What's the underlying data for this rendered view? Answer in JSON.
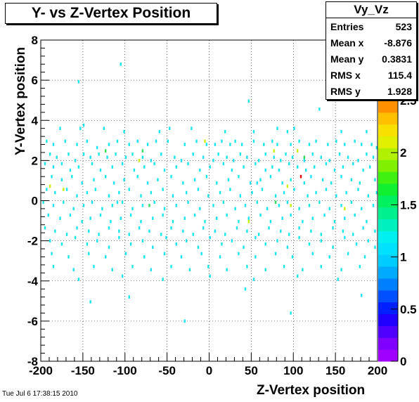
{
  "title": "Y- vs Z-Vertex Position",
  "timestamp": "Tue Jul  6 17:38:15 2010",
  "stats": {
    "name": "Vy_Vz",
    "rows": [
      {
        "label": "Entries",
        "value": "523"
      },
      {
        "label": "Mean x",
        "value": "-8.876"
      },
      {
        "label": "Mean y",
        "value": "0.3831"
      },
      {
        "label": "RMS x",
        "value": "115.4"
      },
      {
        "label": "RMS y",
        "value": "1.928"
      }
    ]
  },
  "chart_data": {
    "type": "heatmap",
    "title": "Y- vs Z-Vertex Position",
    "xlabel": "Z-Vertex position",
    "ylabel": "Y-Vertex position",
    "xlim": [
      -200,
      200
    ],
    "ylim": [
      -8,
      8
    ],
    "xticks": [
      "-200",
      "-150",
      "-100",
      "-50",
      "0",
      "50",
      "100",
      "150",
      "200"
    ],
    "yticks": [
      "-8",
      "-6",
      "-4",
      "-2",
      "0",
      "2",
      "4",
      "6",
      "8"
    ],
    "colorbar": {
      "min": 0,
      "max": 2.5,
      "ticks": [
        "0",
        "0.5",
        "1",
        "1.5",
        "2",
        "2.5"
      ]
    },
    "grid": true,
    "bin_size": [
      2,
      0.16
    ],
    "points": [
      [
        -106,
        6.72
      ],
      [
        -156,
        5.84
      ],
      [
        46,
        4.88
      ],
      [
        130,
        4.48
      ],
      [
        -150,
        3.68
      ],
      [
        -178,
        3.52
      ],
      [
        -154,
        3.52
      ],
      [
        -126,
        3.52
      ],
      [
        -102,
        3.36
      ],
      [
        -60,
        3.36
      ],
      [
        -48,
        3.52
      ],
      [
        -22,
        3.52
      ],
      [
        18,
        3.36
      ],
      [
        52,
        3.36
      ],
      [
        80,
        3.52
      ],
      [
        92,
        3.36
      ],
      [
        100,
        3.52
      ],
      [
        156,
        3.36
      ],
      [
        186,
        3.36
      ],
      [
        -194,
        2.88
      ],
      [
        -186,
        2.72
      ],
      [
        -172,
        2.88
      ],
      [
        -158,
        2.72
      ],
      [
        -146,
        2.88
      ],
      [
        -134,
        2.56
      ],
      [
        -120,
        2.72
      ],
      [
        -110,
        2.88
      ],
      [
        -96,
        2.72
      ],
      [
        -86,
        2.88
      ],
      [
        -74,
        2.72
      ],
      [
        -64,
        2.88
      ],
      [
        -50,
        2.88
      ],
      [
        -30,
        2.72
      ],
      [
        -16,
        2.88
      ],
      [
        -4,
        2.72
      ],
      [
        6,
        2.72
      ],
      [
        14,
        2.88
      ],
      [
        24,
        2.72
      ],
      [
        30,
        2.88
      ],
      [
        38,
        2.72
      ],
      [
        52,
        2.88
      ],
      [
        64,
        2.72
      ],
      [
        74,
        2.88
      ],
      [
        80,
        2.72
      ],
      [
        96,
        2.72
      ],
      [
        106,
        2.88
      ],
      [
        118,
        2.72
      ],
      [
        126,
        2.88
      ],
      [
        140,
        2.72
      ],
      [
        150,
        2.88
      ],
      [
        160,
        2.72
      ],
      [
        172,
        2.88
      ],
      [
        180,
        2.72
      ],
      [
        192,
        2.72
      ],
      [
        198,
        2.56
      ],
      [
        -190,
        2.24
      ],
      [
        -182,
        2.08
      ],
      [
        -168,
        2.24
      ],
      [
        -160,
        1.92
      ],
      [
        -150,
        2.24
      ],
      [
        -142,
        2.08
      ],
      [
        -132,
        2.24
      ],
      [
        -122,
        2.08
      ],
      [
        -112,
        2.24
      ],
      [
        -100,
        2.08
      ],
      [
        -92,
        2.24
      ],
      [
        -80,
        2.08
      ],
      [
        -70,
        1.92
      ],
      [
        -58,
        2.24
      ],
      [
        -42,
        2.08
      ],
      [
        -34,
        1.92
      ],
      [
        -20,
        2.24
      ],
      [
        -8,
        2.08
      ],
      [
        4,
        1.92
      ],
      [
        10,
        2.24
      ],
      [
        20,
        2.08
      ],
      [
        28,
        1.92
      ],
      [
        36,
        2.24
      ],
      [
        44,
        2.08
      ],
      [
        58,
        1.92
      ],
      [
        66,
        2.24
      ],
      [
        76,
        2.08
      ],
      [
        84,
        1.92
      ],
      [
        90,
        2.24
      ],
      [
        98,
        2.08
      ],
      [
        112,
        1.92
      ],
      [
        122,
        2.24
      ],
      [
        132,
        2.08
      ],
      [
        142,
        1.92
      ],
      [
        154,
        2.24
      ],
      [
        164,
        2.08
      ],
      [
        176,
        1.92
      ],
      [
        186,
        2.24
      ],
      [
        194,
        2.08
      ],
      [
        -196,
        1.76
      ],
      [
        -186,
        1.6
      ],
      [
        -176,
        1.76
      ],
      [
        -166,
        1.44
      ],
      [
        -156,
        1.6
      ],
      [
        -140,
        1.76
      ],
      [
        -130,
        1.44
      ],
      [
        -116,
        1.6
      ],
      [
        -104,
        1.76
      ],
      [
        -90,
        1.44
      ],
      [
        -78,
        1.6
      ],
      [
        -66,
        1.76
      ],
      [
        -54,
        1.44
      ],
      [
        -40,
        1.6
      ],
      [
        -26,
        1.76
      ],
      [
        -12,
        1.44
      ],
      [
        0,
        1.6
      ],
      [
        16,
        1.76
      ],
      [
        26,
        1.44
      ],
      [
        40,
        1.6
      ],
      [
        54,
        1.76
      ],
      [
        66,
        1.44
      ],
      [
        74,
        1.6
      ],
      [
        82,
        1.44
      ],
      [
        94,
        1.76
      ],
      [
        104,
        1.6
      ],
      [
        114,
        1.44
      ],
      [
        124,
        1.6
      ],
      [
        138,
        1.76
      ],
      [
        148,
        1.44
      ],
      [
        158,
        1.6
      ],
      [
        170,
        1.76
      ],
      [
        182,
        1.44
      ],
      [
        190,
        1.6
      ],
      [
        -188,
        1.12
      ],
      [
        -176,
        0.96
      ],
      [
        -164,
        1.12
      ],
      [
        -152,
        0.8
      ],
      [
        -138,
        0.96
      ],
      [
        -124,
        1.12
      ],
      [
        -114,
        0.8
      ],
      [
        -102,
        0.96
      ],
      [
        -86,
        1.12
      ],
      [
        -74,
        0.8
      ],
      [
        -62,
        0.96
      ],
      [
        -46,
        1.12
      ],
      [
        -32,
        0.8
      ],
      [
        -18,
        0.96
      ],
      [
        -4,
        1.12
      ],
      [
        8,
        0.8
      ],
      [
        22,
        0.96
      ],
      [
        34,
        1.12
      ],
      [
        48,
        0.8
      ],
      [
        60,
        0.96
      ],
      [
        72,
        1.12
      ],
      [
        86,
        0.8
      ],
      [
        96,
        0.96
      ],
      [
        112,
        0.8
      ],
      [
        120,
        1.12
      ],
      [
        134,
        0.96
      ],
      [
        144,
        0.8
      ],
      [
        156,
        1.12
      ],
      [
        168,
        0.96
      ],
      [
        178,
        0.8
      ],
      [
        196,
        0.96
      ],
      [
        -194,
        0.48
      ],
      [
        -184,
        0.32
      ],
      [
        -170,
        0.48
      ],
      [
        -158,
        0.16
      ],
      [
        -146,
        0.32
      ],
      [
        -136,
        0.48
      ],
      [
        -120,
        0.16
      ],
      [
        -108,
        0.32
      ],
      [
        -96,
        0.48
      ],
      [
        -82,
        0.16
      ],
      [
        -70,
        0.32
      ],
      [
        -56,
        0.48
      ],
      [
        -44,
        0.16
      ],
      [
        -28,
        0.32
      ],
      [
        -14,
        0.48
      ],
      [
        -2,
        0.16
      ],
      [
        12,
        0.32
      ],
      [
        24,
        0.48
      ],
      [
        36,
        0.16
      ],
      [
        50,
        0.32
      ],
      [
        62,
        0.48
      ],
      [
        78,
        0.16
      ],
      [
        88,
        0.32
      ],
      [
        100,
        0.48
      ],
      [
        116,
        0.16
      ],
      [
        126,
        0.32
      ],
      [
        138,
        0.48
      ],
      [
        150,
        0.16
      ],
      [
        162,
        0.32
      ],
      [
        176,
        0.48
      ],
      [
        188,
        0.16
      ],
      [
        198,
        0.32
      ],
      [
        -198,
        -0.16
      ],
      [
        -186,
        -0.32
      ],
      [
        -174,
        -0.16
      ],
      [
        -162,
        -0.48
      ],
      [
        -150,
        -0.32
      ],
      [
        -140,
        -0.16
      ],
      [
        -128,
        -0.48
      ],
      [
        -116,
        -0.32
      ],
      [
        -104,
        -0.16
      ],
      [
        -92,
        -0.48
      ],
      [
        -80,
        -0.32
      ],
      [
        -66,
        -0.16
      ],
      [
        -54,
        -0.48
      ],
      [
        -40,
        -0.32
      ],
      [
        -26,
        -0.16
      ],
      [
        -12,
        -0.48
      ],
      [
        4,
        -0.32
      ],
      [
        16,
        -0.16
      ],
      [
        30,
        -0.48
      ],
      [
        42,
        -0.32
      ],
      [
        56,
        -0.16
      ],
      [
        68,
        -0.48
      ],
      [
        82,
        -0.32
      ],
      [
        92,
        -0.16
      ],
      [
        106,
        -0.48
      ],
      [
        118,
        -0.32
      ],
      [
        130,
        -0.16
      ],
      [
        142,
        -0.48
      ],
      [
        156,
        -0.32
      ],
      [
        168,
        -0.16
      ],
      [
        180,
        -0.48
      ],
      [
        194,
        -0.32
      ],
      [
        -192,
        -0.8
      ],
      [
        -178,
        -0.96
      ],
      [
        -166,
        -0.8
      ],
      [
        -152,
        -1.12
      ],
      [
        -142,
        -0.96
      ],
      [
        -130,
        -0.8
      ],
      [
        -118,
        -1.12
      ],
      [
        -106,
        -0.96
      ],
      [
        -94,
        -0.8
      ],
      [
        -82,
        -1.12
      ],
      [
        -68,
        -0.96
      ],
      [
        -56,
        -0.8
      ],
      [
        -44,
        -1.12
      ],
      [
        -30,
        -0.96
      ],
      [
        -18,
        -0.8
      ],
      [
        -6,
        -1.12
      ],
      [
        8,
        -0.96
      ],
      [
        20,
        -0.8
      ],
      [
        34,
        -1.12
      ],
      [
        46,
        -0.96
      ],
      [
        60,
        -0.8
      ],
      [
        72,
        -1.12
      ],
      [
        86,
        -0.96
      ],
      [
        96,
        -0.8
      ],
      [
        110,
        -1.12
      ],
      [
        122,
        -0.96
      ],
      [
        136,
        -0.8
      ],
      [
        148,
        -1.12
      ],
      [
        160,
        -0.96
      ],
      [
        172,
        -0.8
      ],
      [
        186,
        -1.12
      ],
      [
        -196,
        -1.44
      ],
      [
        -184,
        -1.6
      ],
      [
        -170,
        -1.76
      ],
      [
        -158,
        -1.44
      ],
      [
        -144,
        -1.6
      ],
      [
        -132,
        -1.76
      ],
      [
        -120,
        -1.44
      ],
      [
        -108,
        -1.6
      ],
      [
        -96,
        -1.76
      ],
      [
        -84,
        -1.44
      ],
      [
        -72,
        -1.6
      ],
      [
        -58,
        -1.76
      ],
      [
        -46,
        -1.44
      ],
      [
        -32,
        -1.6
      ],
      [
        -20,
        -1.76
      ],
      [
        -8,
        -1.44
      ],
      [
        6,
        -1.6
      ],
      [
        18,
        -1.76
      ],
      [
        32,
        -1.44
      ],
      [
        44,
        -1.6
      ],
      [
        58,
        -1.76
      ],
      [
        70,
        -1.44
      ],
      [
        84,
        -1.6
      ],
      [
        94,
        -1.76
      ],
      [
        106,
        -1.44
      ],
      [
        120,
        -1.6
      ],
      [
        132,
        -1.76
      ],
      [
        146,
        -1.44
      ],
      [
        158,
        -1.6
      ],
      [
        170,
        -1.76
      ],
      [
        182,
        -1.44
      ],
      [
        196,
        -1.6
      ],
      [
        -190,
        -2.08
      ],
      [
        -176,
        -2.24
      ],
      [
        -160,
        -1.92
      ],
      [
        -146,
        -2.24
      ],
      [
        -134,
        -2.08
      ],
      [
        -120,
        -2.4
      ],
      [
        -108,
        -1.92
      ],
      [
        -94,
        -2.24
      ],
      [
        -80,
        -2.08
      ],
      [
        -68,
        -2.4
      ],
      [
        -52,
        -1.92
      ],
      [
        -40,
        -2.24
      ],
      [
        -28,
        -2.08
      ],
      [
        -14,
        -2.4
      ],
      [
        0,
        -1.92
      ],
      [
        14,
        -2.24
      ],
      [
        26,
        -2.08
      ],
      [
        40,
        -2.4
      ],
      [
        54,
        -1.92
      ],
      [
        66,
        -2.24
      ],
      [
        80,
        -2.08
      ],
      [
        92,
        -2.4
      ],
      [
        106,
        -1.92
      ],
      [
        118,
        -2.24
      ],
      [
        132,
        -2.08
      ],
      [
        146,
        -2.4
      ],
      [
        160,
        -1.92
      ],
      [
        174,
        -2.24
      ],
      [
        188,
        -2.08
      ],
      [
        196,
        -2.4
      ],
      [
        -188,
        -2.72
      ],
      [
        -168,
        -2.88
      ],
      [
        -144,
        -2.72
      ],
      [
        -124,
        -2.88
      ],
      [
        -100,
        -2.72
      ],
      [
        -78,
        -2.88
      ],
      [
        -54,
        -2.72
      ],
      [
        -34,
        -2.88
      ],
      [
        -10,
        -2.72
      ],
      [
        12,
        -2.88
      ],
      [
        34,
        -2.72
      ],
      [
        54,
        -2.88
      ],
      [
        78,
        -2.72
      ],
      [
        98,
        -2.88
      ],
      [
        122,
        -2.72
      ],
      [
        142,
        -2.88
      ],
      [
        164,
        -2.72
      ],
      [
        184,
        -2.88
      ],
      [
        -186,
        -3.36
      ],
      [
        -162,
        -3.52
      ],
      [
        -138,
        -3.36
      ],
      [
        -116,
        -3.52
      ],
      [
        -92,
        -3.36
      ],
      [
        -70,
        -3.52
      ],
      [
        -46,
        -3.36
      ],
      [
        -24,
        -3.52
      ],
      [
        -2,
        -3.36
      ],
      [
        20,
        -3.52
      ],
      [
        44,
        -3.36
      ],
      [
        66,
        -3.52
      ],
      [
        88,
        -3.36
      ],
      [
        110,
        -3.52
      ],
      [
        132,
        -3.36
      ],
      [
        156,
        -3.52
      ],
      [
        178,
        -3.36
      ],
      [
        -156,
        -4.0
      ],
      [
        -104,
        -3.84
      ],
      [
        -56,
        -4.0
      ],
      [
        0,
        -3.84
      ],
      [
        52,
        -4.0
      ],
      [
        104,
        -3.84
      ],
      [
        152,
        -4.0
      ],
      [
        42,
        -4.48
      ],
      [
        -142,
        -5.12
      ],
      [
        -96,
        -4.88
      ],
      [
        180,
        -4.8
      ],
      [
        96,
        -5.68
      ],
      [
        -30,
        -6.08
      ],
      [
        -110,
        -0.16
      ],
      [
        56,
        0.8
      ]
    ],
    "hot_points": [
      {
        "x": -190,
        "y": 0.64,
        "level": "yellow"
      },
      {
        "x": -174,
        "y": 0.48,
        "level": "yellow"
      },
      {
        "x": -84,
        "y": 1.92,
        "level": "yellow"
      },
      {
        "x": -6,
        "y": 2.88,
        "level": "yellow"
      },
      {
        "x": 46,
        "y": -1.12,
        "level": "yellow"
      },
      {
        "x": 76,
        "y": 2.4,
        "level": "yellow"
      },
      {
        "x": 92,
        "y": 0.64,
        "level": "yellow"
      },
      {
        "x": 96,
        "y": -0.32,
        "level": "yellow"
      },
      {
        "x": 104,
        "y": 2.4,
        "level": "yellow"
      },
      {
        "x": 160,
        "y": -0.48,
        "level": "yellow"
      },
      {
        "x": -124,
        "y": 2.4,
        "level": "green"
      },
      {
        "x": -72,
        "y": -0.32,
        "level": "green"
      },
      {
        "x": 78,
        "y": -0.16,
        "level": "green"
      },
      {
        "x": 112,
        "y": 2.08,
        "level": "green"
      },
      {
        "x": -80,
        "y": 2.4,
        "level": "green"
      },
      {
        "x": 108,
        "y": 1.12,
        "level": "red"
      }
    ]
  }
}
